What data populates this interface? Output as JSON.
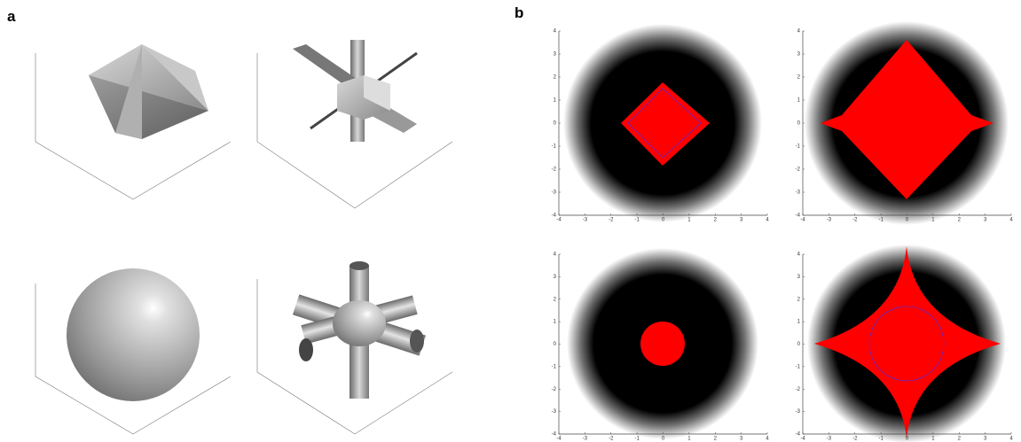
{
  "panel_labels": [
    "a",
    "b"
  ],
  "scatter_panels": [
    {
      "xticks": [
        -4,
        -3,
        -2,
        -1,
        0,
        1,
        2,
        3,
        4
      ],
      "yticks": [
        -4,
        -3,
        -2,
        -1,
        0,
        1,
        2,
        3,
        4
      ]
    },
    {
      "xticks": [
        -4,
        -3,
        -2,
        -1,
        0,
        1,
        2,
        3,
        4
      ],
      "yticks": [
        -4,
        -3,
        -2,
        -1,
        0,
        1,
        2,
        3,
        4
      ]
    },
    {
      "xticks": [
        -4,
        -3,
        -2,
        -1,
        0,
        1,
        2,
        3,
        4
      ],
      "yticks": [
        -4,
        -3,
        -2,
        -1,
        0,
        1,
        2,
        3,
        4
      ]
    },
    {
      "xticks": [
        -4,
        -3,
        -2,
        -1,
        0,
        1,
        2,
        3,
        4
      ],
      "yticks": [
        -4,
        -3,
        -2,
        -1,
        0,
        1,
        2,
        3,
        4
      ]
    }
  ]
}
